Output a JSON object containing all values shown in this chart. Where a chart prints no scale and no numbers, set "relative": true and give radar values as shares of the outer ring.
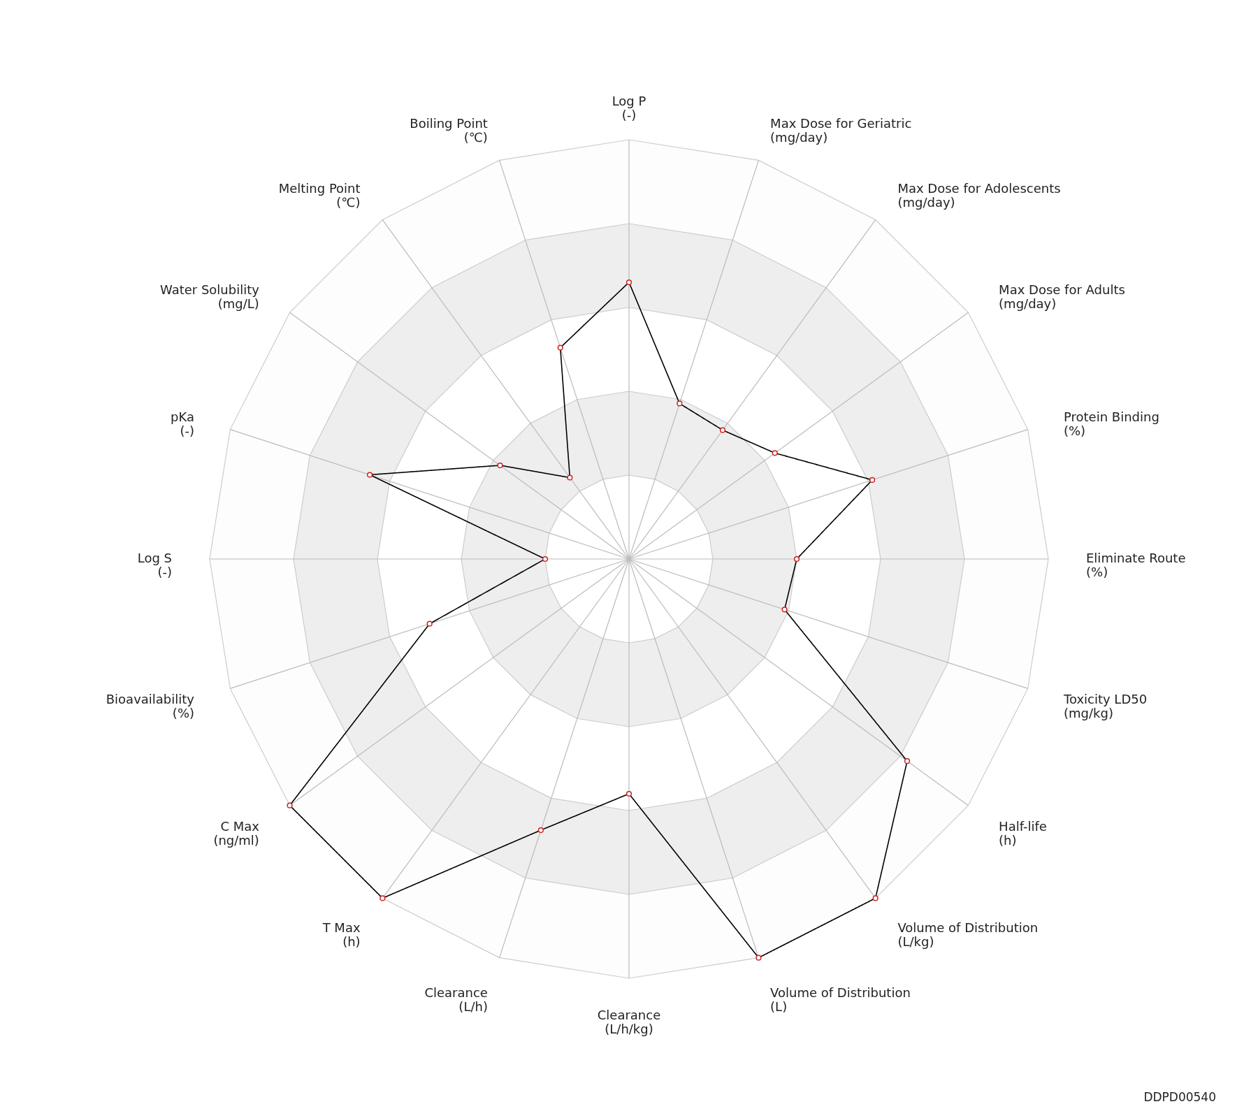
{
  "chart_data": {
    "type": "radar",
    "relative": true,
    "marker": "circle",
    "line_style": "solid",
    "categories": [
      "Log P\n(-)",
      "Max Dose for Geriatric\n(mg/day)",
      "Max Dose for Adolescents\n(mg/day)",
      "Max Dose for Adults\n(mg/day)",
      "Protein Binding\n(%)",
      "Eliminate Route\n(%)",
      "Toxicity LD50\n(mg/kg)",
      "Half-life\n(h)",
      "Volume of Distribution\n(L/kg)",
      "Volume of Distribution\n(L)",
      "Clearance\n(L/h/kg)",
      "Clearance\n(L/h)",
      "T Max\n(h)",
      "C Max\n(ng/ml)",
      "Bioavailability\n(%)",
      "Log S\n(-)",
      "pKa\n(-)",
      "Water Solubility\n(mg/L)",
      "Melting Point\n(℃)",
      "Boiling Point\n(℃)"
    ],
    "series": [
      {
        "color": "#000000",
        "values": [
          0.66,
          0.39,
          0.38,
          0.43,
          0.61,
          0.4,
          0.39,
          0.82,
          1.0,
          1.0,
          0.56,
          0.68,
          1.0,
          1.0,
          0.5,
          0.2,
          0.65,
          0.38,
          0.24,
          0.53
        ]
      }
    ],
    "annotations": [
      "DDPD00540"
    ]
  }
}
